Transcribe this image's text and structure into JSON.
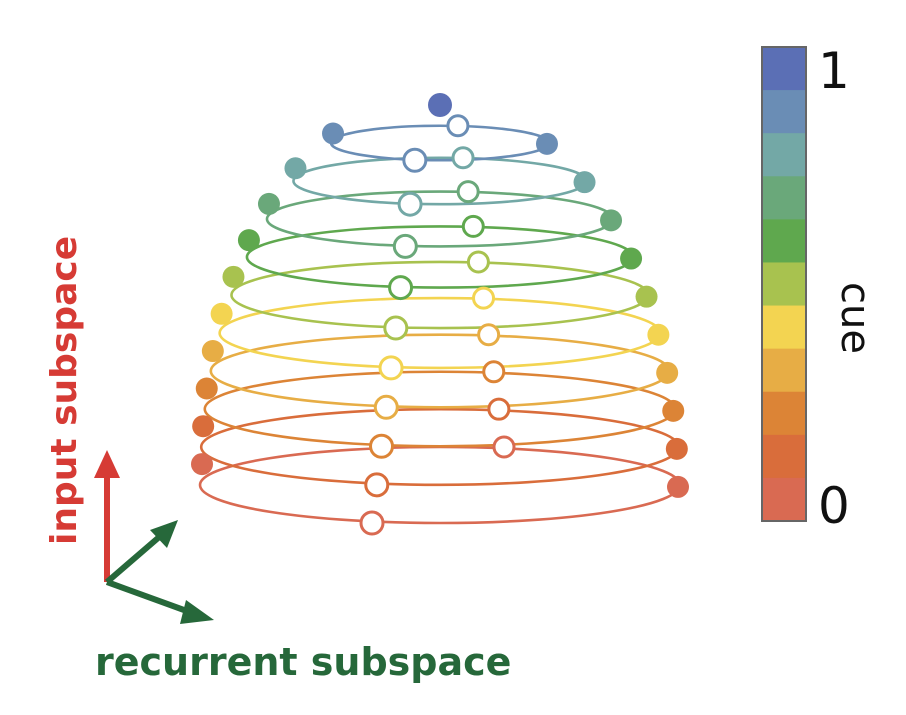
{
  "colors": {
    "ramp": [
      "#d96a52",
      "#d96d3b",
      "#dc8436",
      "#e7ad45",
      "#f3d451",
      "#a8c24f",
      "#5fa84e",
      "#6aa87a",
      "#73a8a6",
      "#6a8db5",
      "#5b6fb5"
    ],
    "input_axis": "#d63b35",
    "recurrent_axis": "#26683a",
    "legend_text": "#111111",
    "colorbar_border": "#666666"
  },
  "diagram": {
    "rings": 11
  },
  "labels": {
    "input_subspace": "input subspace",
    "recurrent_subspace": "recurrent subspace"
  },
  "colorbar": {
    "label": "cue",
    "max_label": "1",
    "min_label": "0",
    "levels": 11
  }
}
